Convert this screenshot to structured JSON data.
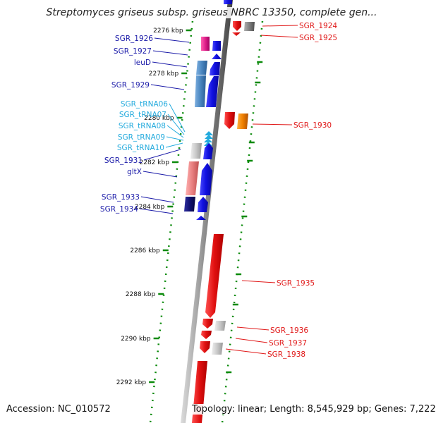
{
  "title": "Streptomyces griseus subsp. griseus NBRC 13350, complete gen...",
  "accession": "Accession: NC_010572",
  "topology": "Topology: linear; Length: 8,545,929 bp; Genes: 7,222",
  "colors": {
    "dark_blue": "#1a1aa8",
    "blue": "#1f1fe0",
    "steel_blue": "#4a86c0",
    "light_blue": "#8ab8e0",
    "cyan_text": "#22aadd",
    "magenta": "#e0208a",
    "red": "#e01818",
    "orange": "#f08000",
    "gray": "#8c8c8c",
    "light_gray": "#cfcfcf",
    "tick_green": "#0a8a0a",
    "pink": "#e88080"
  },
  "ticks": [
    "2276 kbp",
    "2278 kbp",
    "2280 kbp",
    "2282 kbp",
    "2284 kbp",
    "2286 kbp",
    "2288 kbp",
    "2290 kbp",
    "2292 kbp"
  ],
  "left_genes": [
    {
      "label": "SGR_1926",
      "type": "cds"
    },
    {
      "label": "SGR_1927",
      "type": "cds"
    },
    {
      "label": "leuD",
      "type": "cds"
    },
    {
      "label": "SGR_1929",
      "type": "cds"
    },
    {
      "label": "SGR_tRNA06",
      "type": "trna"
    },
    {
      "label": "SGR_tRNA07",
      "type": "trna"
    },
    {
      "label": "SGR_tRNA08",
      "type": "trna"
    },
    {
      "label": "SGR_tRNA09",
      "type": "trna"
    },
    {
      "label": "SGR_tRNA10",
      "type": "trna"
    },
    {
      "label": "SGR_1931",
      "type": "cds"
    },
    {
      "label": "gltX",
      "type": "cds"
    },
    {
      "label": "SGR_1933",
      "type": "cds"
    },
    {
      "label": "SGR_1934",
      "type": "cds"
    }
  ],
  "right_genes": [
    {
      "label": "SGR_1924"
    },
    {
      "label": "SGR_1925"
    },
    {
      "label": "SGR_1930"
    },
    {
      "label": "SGR_1935"
    },
    {
      "label": "SGR_1936"
    },
    {
      "label": "SGR_1937"
    },
    {
      "label": "SGR_1938"
    }
  ]
}
